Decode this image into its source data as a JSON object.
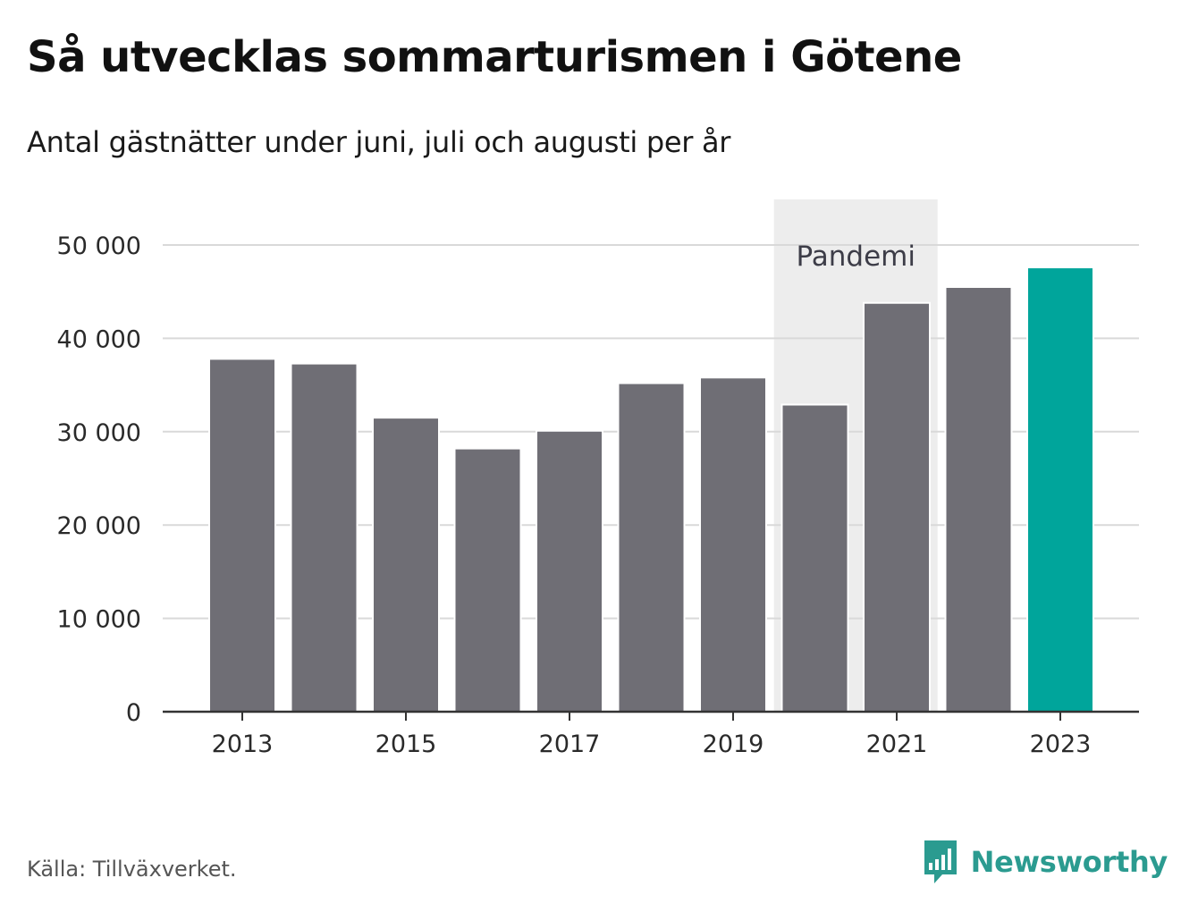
{
  "header": {
    "title": "Så utvecklas sommarturismen i Götene",
    "subtitle": "Antal gästnätter under juni, juli och augusti per år"
  },
  "footer": {
    "source": "Källa: Tillväxverket.",
    "brand": "Newsworthy"
  },
  "colors": {
    "bar": "#6f6e75",
    "highlight": "#00a59b",
    "band": "#ededed",
    "grid": "#d9d9d9",
    "axis": "#333333",
    "brand": "#2b9b90"
  },
  "chart_data": {
    "type": "bar",
    "categories": [
      "2013",
      "2014",
      "2015",
      "2016",
      "2017",
      "2018",
      "2019",
      "2020",
      "2021",
      "2022",
      "2023"
    ],
    "values": [
      37800,
      37300,
      31500,
      28200,
      30100,
      35200,
      35800,
      32900,
      43800,
      45500,
      47600
    ],
    "highlight_category": "2023",
    "x_tick_labels": [
      "2013",
      "2015",
      "2017",
      "2019",
      "2021",
      "2023"
    ],
    "y_ticks": [
      0,
      10000,
      20000,
      30000,
      40000,
      50000
    ],
    "y_tick_labels": [
      "0",
      "10 000",
      "20 000",
      "30 000",
      "40 000",
      "50 000"
    ],
    "ylim": [
      0,
      50000
    ],
    "grid": true,
    "annotation": {
      "label": "Pandemi",
      "start": "2020",
      "end": "2021"
    }
  }
}
